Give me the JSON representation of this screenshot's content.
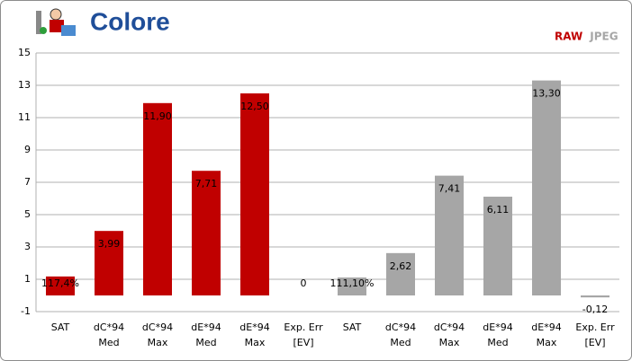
{
  "chart_data": {
    "type": "bar",
    "title": "Colore",
    "categories": [
      [
        "SAT"
      ],
      [
        "dC*94",
        "Med"
      ],
      [
        "dC*94",
        "Max"
      ],
      [
        "dE*94",
        "Med"
      ],
      [
        "dE*94",
        "Max"
      ],
      [
        "Exp. Err",
        "[EV]"
      ],
      [
        "SAT"
      ],
      [
        "dC*94",
        "Med"
      ],
      [
        "dC*94",
        "Max"
      ],
      [
        "dE*94",
        "Med"
      ],
      [
        "dE*94",
        "Max"
      ],
      [
        "Exp. Err",
        "[EV]"
      ]
    ],
    "series": [
      {
        "name": "RAW",
        "color": "#c00000",
        "values": [
          1.174,
          3.99,
          11.9,
          7.71,
          12.5,
          0,
          null,
          null,
          null,
          null,
          null,
          null
        ],
        "value_labels": [
          "117,4%",
          "3,99",
          "11,90",
          "7,71",
          "12,50",
          "0",
          null,
          null,
          null,
          null,
          null,
          null
        ]
      },
      {
        "name": "JPEG",
        "color": "#a6a6a6",
        "values": [
          null,
          null,
          null,
          null,
          null,
          null,
          1.111,
          2.62,
          7.41,
          6.11,
          13.3,
          -0.12
        ],
        "value_labels": [
          null,
          null,
          null,
          null,
          null,
          null,
          "111,10%",
          "2,62",
          "7,41",
          "6,11",
          "13,30",
          "-0,12"
        ]
      }
    ],
    "ylim": [
      -1,
      15
    ],
    "yticks": [
      -1,
      1,
      3,
      5,
      7,
      9,
      11,
      13,
      15
    ],
    "grid": true,
    "legend": "top-right"
  }
}
